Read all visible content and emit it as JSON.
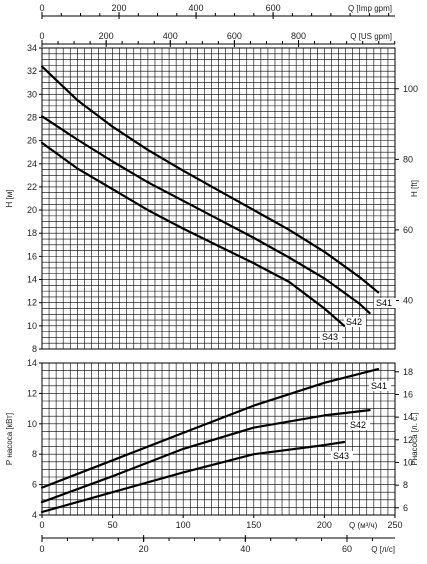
{
  "chart_data": [
    {
      "type": "line",
      "panel": "head",
      "x_unit": "m³/h",
      "ylabel": "H [м]",
      "ylim": [
        8,
        34
      ],
      "y_ticks": [
        8,
        10,
        12,
        14,
        16,
        18,
        20,
        22,
        24,
        26,
        28,
        30,
        32,
        34
      ],
      "y_right_label": "H [ft]",
      "y_right_ticks": [
        40,
        60,
        80,
        100
      ],
      "top_axes": [
        {
          "label": "Q [US gpm]",
          "ticks": [
            0,
            200,
            400,
            600,
            800
          ],
          "m3h_per_unit": 0.2271
        },
        {
          "label": "Q [Imp gpm]",
          "ticks": [
            0,
            200,
            400,
            600
          ],
          "m3h_per_unit": 0.2728
        }
      ],
      "series": [
        {
          "name": "S41",
          "x": [
            0,
            25,
            50,
            75,
            100,
            125,
            150,
            175,
            200,
            225,
            238
          ],
          "y": [
            32.4,
            29.5,
            27.2,
            25.2,
            23.4,
            21.7,
            20.0,
            18.3,
            16.4,
            14.2,
            12.9
          ]
        },
        {
          "name": "S42",
          "x": [
            0,
            25,
            50,
            75,
            100,
            125,
            150,
            175,
            200,
            225,
            232
          ],
          "y": [
            28.1,
            26.1,
            24.2,
            22.4,
            20.8,
            19.2,
            17.6,
            15.9,
            14.1,
            11.9,
            11.1
          ]
        },
        {
          "name": "S43",
          "x": [
            0,
            25,
            50,
            75,
            100,
            125,
            150,
            175,
            200,
            214
          ],
          "y": [
            25.8,
            23.6,
            21.8,
            20.0,
            18.4,
            16.9,
            15.4,
            13.8,
            11.5,
            10.0
          ]
        }
      ]
    },
    {
      "type": "line",
      "panel": "power",
      "xlabel": "Q (м³/ч)",
      "x_ticks": [
        0,
        50,
        100,
        150,
        200,
        250
      ],
      "xlim": [
        0,
        250
      ],
      "ylabel": "P насоса [кВт]",
      "ylim": [
        4,
        14
      ],
      "y_ticks": [
        4,
        6,
        8,
        10,
        12,
        14
      ],
      "y_right_label": "Pнасоса [л. с.]",
      "y_right_ticks": [
        6,
        8,
        10,
        12,
        14,
        16,
        18
      ],
      "bottom_axis": {
        "label": "Q [л/с]",
        "ticks": [
          0,
          20,
          40,
          60
        ],
        "m3h_per_unit": 3.6
      },
      "series": [
        {
          "name": "S41",
          "x": [
            0,
            50,
            100,
            150,
            200,
            238
          ],
          "y": [
            5.8,
            7.6,
            9.4,
            11.2,
            12.7,
            13.6
          ]
        },
        {
          "name": "S42",
          "x": [
            0,
            50,
            100,
            150,
            200,
            232
          ],
          "y": [
            4.85,
            6.55,
            8.35,
            9.75,
            10.55,
            10.9
          ]
        },
        {
          "name": "S43",
          "x": [
            0,
            50,
            100,
            150,
            200,
            214
          ],
          "y": [
            4.2,
            5.5,
            6.8,
            8.0,
            8.6,
            8.8
          ]
        }
      ]
    }
  ]
}
